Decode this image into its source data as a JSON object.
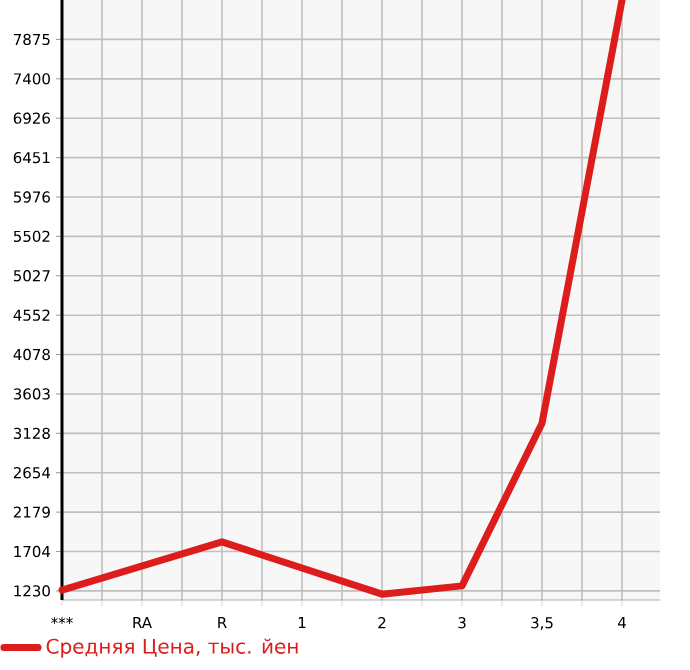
{
  "chart_data": {
    "type": "line",
    "categories": [
      "***",
      "RA",
      "R",
      "1",
      "2",
      "3",
      "3,5",
      "4"
    ],
    "series": [
      {
        "name": "Средняя Цена, тыс. йен",
        "color": "#dd1c1c",
        "values": [
          1240,
          null,
          1820,
          null,
          1190,
          1290,
          3250,
          8350
        ]
      }
    ],
    "ylim": [
      1120,
      8350
    ],
    "yticks": [
      1230,
      1704,
      2179,
      2654,
      3128,
      3603,
      4078,
      4552,
      5027,
      5502,
      5976,
      6451,
      6926,
      7400,
      7875
    ],
    "grid": true,
    "legend": "bottom",
    "marker": "none",
    "line_style": "solid"
  }
}
